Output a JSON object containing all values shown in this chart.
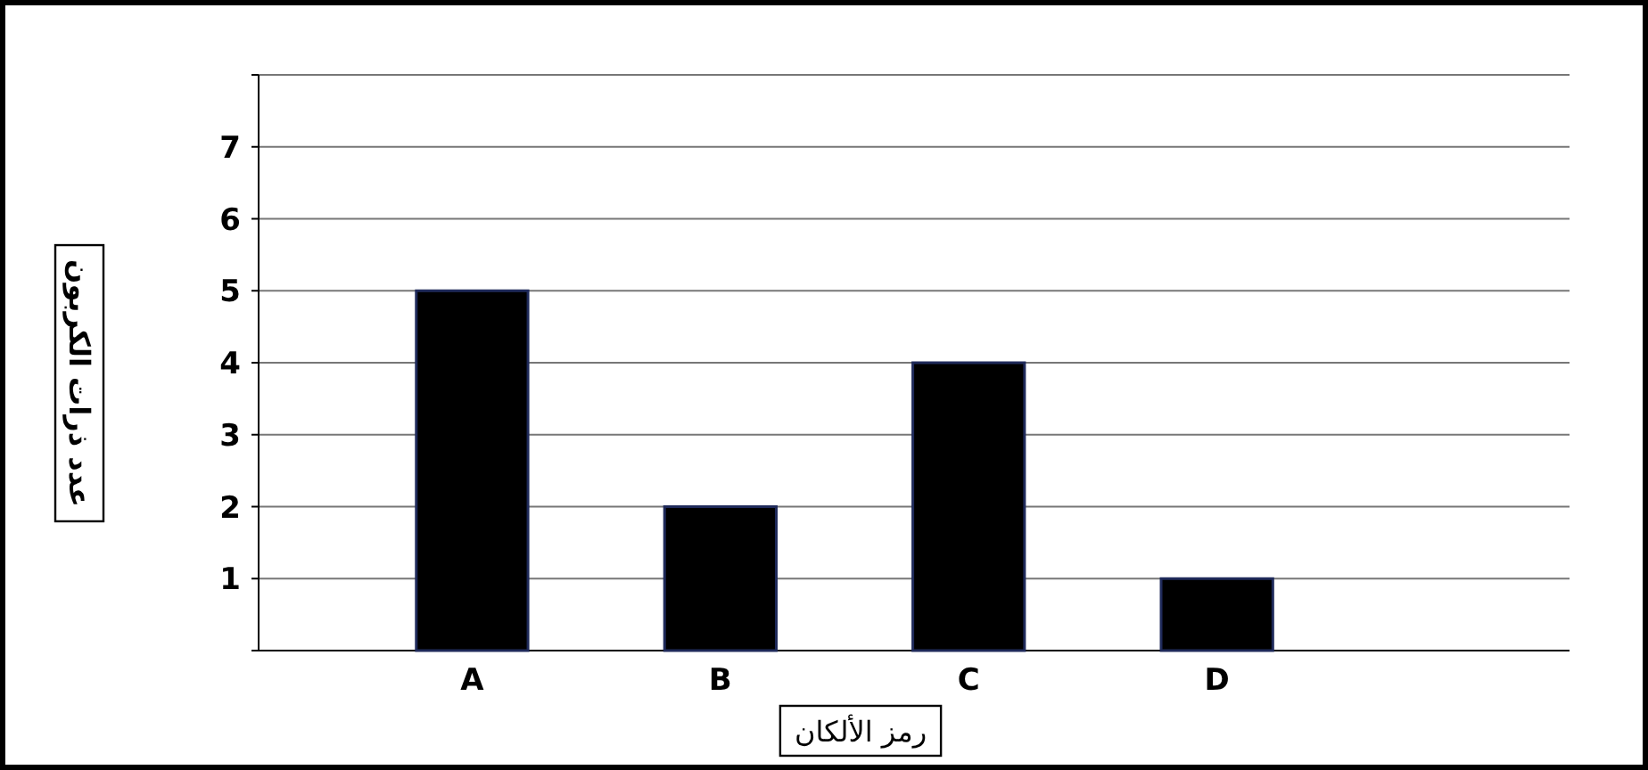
{
  "chart_data": {
    "type": "bar",
    "xlabel": "رمز الألكان",
    "ylabel": "عدد ذرات الكربون",
    "categories": [
      "A",
      "B",
      "C",
      "D"
    ],
    "values": [
      5,
      2,
      4,
      1
    ],
    "color": "#000000",
    "ylim": [
      0,
      8
    ],
    "yticks": [
      {
        "value": 0,
        "label": null
      },
      1,
      2,
      3,
      4,
      5,
      6,
      7,
      {
        "value": 8,
        "label": null
      }
    ],
    "grid": "y"
  }
}
